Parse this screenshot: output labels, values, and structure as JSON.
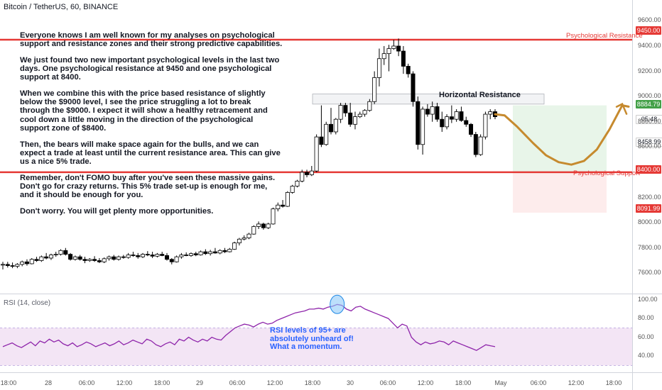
{
  "symbol": "Bitcoin / TetherUS, 60, BINANCE",
  "rsi_title": "RSI (14, close)",
  "analysis": [
    "Everyone knows I am well known for my analyses on psychological support and resistance zones and their strong predictive capabilities.",
    "We just found two new important psychological levels in the last two days. One psychological resistance at 9450 and one psychological support at 8400.",
    "When we combine this with the price based resistance of slightly below the $9000 level, I see the price struggling a lot to break through the $9000. I expect it will show a healthy retracement and cool down a little moving in the direction of the psychological support zone of $8400.",
    "Then, the bears will make space again for the bulls, and we can expect a trade at least until the current resistance area. This can give us a nice 5% trade.",
    "Remember, don't FOMO buy after you've seen these massive gains. Don't go for crazy returns. This 5% trade set-up is enough for me, and it should be enough for you.",
    "Don't worry. You will get plenty more opportunities."
  ],
  "rsi_note": [
    "RSI levels of 95+ are",
    "absolutely unheard of!",
    "What a momentum."
  ],
  "horizontal_resistance_label": "Horizontal Resistance",
  "resistance_label": "Psychological Resistance",
  "support_label": "Psychological Support",
  "price_tags": {
    "resistance": "9450.00",
    "support": "8400.00",
    "current": "8884.79",
    "countdown": "05:48",
    "target": "8458.99",
    "stop": "8091.99"
  },
  "colors": {
    "up_candle": "#ffffff",
    "down_candle": "#000000",
    "level_line": "#e53935",
    "rsi_line": "#8e24aa",
    "rsi_band": "#f3e5f5",
    "projection": "#c68a2e",
    "profit_zone": "#e8f5e9",
    "loss_zone": "#fdecec",
    "current_tag": "#43a047",
    "highlight_circle": "#90caf9"
  },
  "chart_data": {
    "type": "candlestick",
    "price_axis": {
      "ticks": [
        7600,
        7800,
        8000,
        8200,
        8400,
        8600,
        8800,
        9000,
        9200,
        9400,
        9600
      ],
      "range": [
        7450,
        9720
      ]
    },
    "time_axis": [
      "18:00",
      "28",
      "06:00",
      "12:00",
      "18:00",
      "29",
      "06:00",
      "12:00",
      "18:00",
      "30",
      "06:00",
      "12:00",
      "18:00",
      "May",
      "06:00",
      "12:00",
      "18:00"
    ],
    "levels": {
      "psychological_resistance": 9450,
      "psychological_support": 8400
    },
    "horizontal_resistance_zone": [
      8940,
      9020
    ],
    "candles_ohlc": [
      [
        7665,
        7690,
        7630,
        7670
      ],
      [
        7670,
        7690,
        7645,
        7660
      ],
      [
        7660,
        7685,
        7640,
        7655
      ],
      [
        7655,
        7680,
        7640,
        7670
      ],
      [
        7670,
        7700,
        7655,
        7690
      ],
      [
        7690,
        7710,
        7660,
        7675
      ],
      [
        7675,
        7720,
        7670,
        7710
      ],
      [
        7710,
        7730,
        7690,
        7700
      ],
      [
        7700,
        7740,
        7690,
        7730
      ],
      [
        7730,
        7760,
        7710,
        7720
      ],
      [
        7720,
        7755,
        7705,
        7745
      ],
      [
        7745,
        7770,
        7730,
        7750
      ],
      [
        7750,
        7790,
        7740,
        7780
      ],
      [
        7780,
        7800,
        7740,
        7750
      ],
      [
        7750,
        7760,
        7700,
        7710
      ],
      [
        7710,
        7740,
        7700,
        7730
      ],
      [
        7730,
        7745,
        7700,
        7710
      ],
      [
        7710,
        7730,
        7680,
        7700
      ],
      [
        7700,
        7720,
        7690,
        7710
      ],
      [
        7710,
        7735,
        7690,
        7700
      ],
      [
        7700,
        7720,
        7680,
        7690
      ],
      [
        7690,
        7725,
        7680,
        7715
      ],
      [
        7715,
        7740,
        7700,
        7730
      ],
      [
        7730,
        7745,
        7700,
        7710
      ],
      [
        7710,
        7740,
        7700,
        7730
      ],
      [
        7730,
        7745,
        7715,
        7725
      ],
      [
        7725,
        7760,
        7715,
        7745
      ],
      [
        7745,
        7770,
        7730,
        7740
      ],
      [
        7740,
        7760,
        7715,
        7730
      ],
      [
        7730,
        7760,
        7720,
        7750
      ],
      [
        7750,
        7775,
        7735,
        7745
      ],
      [
        7745,
        7770,
        7720,
        7735
      ],
      [
        7735,
        7760,
        7725,
        7750
      ],
      [
        7750,
        7770,
        7735,
        7740
      ],
      [
        7740,
        7760,
        7700,
        7710
      ],
      [
        7710,
        7720,
        7670,
        7690
      ],
      [
        7690,
        7740,
        7685,
        7730
      ],
      [
        7730,
        7760,
        7715,
        7745
      ],
      [
        7745,
        7765,
        7735,
        7740
      ],
      [
        7740,
        7765,
        7730,
        7755
      ],
      [
        7755,
        7770,
        7735,
        7745
      ],
      [
        7745,
        7780,
        7740,
        7770
      ],
      [
        7770,
        7790,
        7745,
        7755
      ],
      [
        7755,
        7785,
        7740,
        7770
      ],
      [
        7770,
        7800,
        7755,
        7760
      ],
      [
        7760,
        7790,
        7750,
        7780
      ],
      [
        7780,
        7800,
        7760,
        7770
      ],
      [
        7770,
        7800,
        7765,
        7790
      ],
      [
        7790,
        7850,
        7785,
        7840
      ],
      [
        7840,
        7880,
        7820,
        7870
      ],
      [
        7870,
        7900,
        7860,
        7880
      ],
      [
        7880,
        7920,
        7870,
        7910
      ],
      [
        7910,
        7980,
        7905,
        7970
      ],
      [
        7970,
        8010,
        7950,
        7990
      ],
      [
        7990,
        8000,
        7945,
        7960
      ],
      [
        7960,
        8000,
        7950,
        7990
      ],
      [
        7990,
        8120,
        7985,
        8110
      ],
      [
        8110,
        8160,
        8090,
        8140
      ],
      [
        8140,
        8180,
        8120,
        8130
      ],
      [
        8130,
        8250,
        8125,
        8240
      ],
      [
        8240,
        8300,
        8230,
        8290
      ],
      [
        8290,
        8340,
        8280,
        8330
      ],
      [
        8330,
        8420,
        8320,
        8400
      ],
      [
        8400,
        8420,
        8360,
        8380
      ],
      [
        8380,
        8450,
        8370,
        8410
      ],
      [
        8410,
        8700,
        8400,
        8680
      ],
      [
        8680,
        8930,
        8600,
        8620
      ],
      [
        8620,
        8800,
        8610,
        8780
      ],
      [
        8780,
        8910,
        8700,
        8720
      ],
      [
        8720,
        8830,
        8700,
        8820
      ],
      [
        8820,
        8950,
        8790,
        8930
      ],
      [
        8930,
        8950,
        8840,
        8870
      ],
      [
        8870,
        8950,
        8760,
        8780
      ],
      [
        8780,
        8880,
        8740,
        8840
      ],
      [
        8840,
        8880,
        8830,
        8860
      ],
      [
        8860,
        8900,
        8840,
        8890
      ],
      [
        8890,
        8980,
        8880,
        8960
      ],
      [
        8960,
        9200,
        8940,
        9150
      ],
      [
        9150,
        9380,
        9080,
        9300
      ],
      [
        9300,
        9400,
        9250,
        9340
      ],
      [
        9340,
        9410,
        9200,
        9380
      ],
      [
        9380,
        9450,
        9370,
        9400
      ],
      [
        9400,
        9460,
        9320,
        9360
      ],
      [
        9360,
        9400,
        9180,
        9240
      ],
      [
        9240,
        9260,
        9150,
        9180
      ],
      [
        9180,
        9200,
        8920,
        8960
      ],
      [
        8960,
        9000,
        8580,
        8620
      ],
      [
        8620,
        8920,
        8540,
        8900
      ],
      [
        8900,
        8940,
        8840,
        8860
      ],
      [
        8860,
        8960,
        8800,
        8920
      ],
      [
        8920,
        8950,
        8800,
        8820
      ],
      [
        8820,
        8880,
        8720,
        8760
      ],
      [
        8760,
        8860,
        8740,
        8840
      ],
      [
        8840,
        8930,
        8790,
        8820
      ],
      [
        8820,
        8900,
        8800,
        8880
      ],
      [
        8880,
        8920,
        8800,
        8810
      ],
      [
        8810,
        8840,
        8760,
        8780
      ],
      [
        8780,
        8790,
        8680,
        8700
      ],
      [
        8700,
        8720,
        8520,
        8540
      ],
      [
        8540,
        8700,
        8530,
        8680
      ],
      [
        8680,
        8880,
        8660,
        8860
      ],
      [
        8860,
        8900,
        8820,
        8880
      ],
      [
        8880,
        8900,
        8820,
        8840
      ]
    ],
    "projection_path": [
      [
        8860,
        0
      ],
      [
        8850,
        6
      ],
      [
        8760,
        14
      ],
      [
        8630,
        24
      ],
      [
        8535,
        32
      ],
      [
        8480,
        40
      ],
      [
        8460,
        48
      ],
      [
        8490,
        56
      ],
      [
        8580,
        64
      ],
      [
        8740,
        72
      ],
      [
        8930,
        80
      ],
      [
        8920,
        84
      ]
    ],
    "rsi": {
      "ticks": [
        40,
        60,
        80,
        100
      ],
      "band": [
        30,
        70
      ],
      "values": [
        50,
        52,
        54,
        51,
        49,
        52,
        55,
        51,
        56,
        54,
        58,
        55,
        57,
        53,
        51,
        54,
        50,
        52,
        55,
        53,
        50,
        52,
        54,
        51,
        53,
        56,
        52,
        54,
        57,
        55,
        53,
        58,
        56,
        52,
        50,
        53,
        55,
        52,
        58,
        56,
        60,
        57,
        55,
        58,
        56,
        60,
        58,
        57,
        62,
        66,
        70,
        72,
        74,
        73,
        71,
        74,
        76,
        74,
        75,
        78,
        80,
        82,
        84,
        86,
        87,
        88,
        90,
        90,
        91,
        90,
        92,
        93,
        95,
        94,
        90,
        88,
        92,
        93,
        90,
        88,
        86,
        84,
        82,
        80,
        75,
        70,
        74,
        72,
        60,
        55,
        52,
        55,
        53,
        54,
        56,
        55,
        52,
        56,
        54,
        52,
        50,
        48,
        46,
        49,
        52,
        51,
        50
      ]
    }
  }
}
